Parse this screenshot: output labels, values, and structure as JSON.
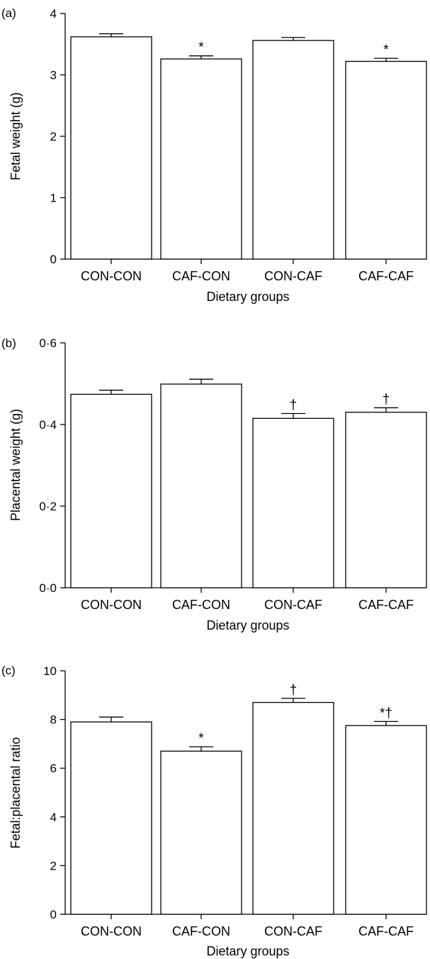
{
  "chart_data": [
    {
      "type": "bar",
      "panel": "(a)",
      "categories": [
        "CON-CON",
        "CAF-CON",
        "CON-CAF",
        "CAF-CAF"
      ],
      "values": [
        3.62,
        3.26,
        3.56,
        3.22
      ],
      "errors": [
        0.05,
        0.05,
        0.05,
        0.05
      ],
      "annotations": [
        "",
        "*",
        "",
        "*"
      ],
      "xlabel": "Dietary groups",
      "ylabel": "Fetal weight (g)",
      "ylim": [
        0,
        4
      ],
      "yticks": [
        0,
        1,
        2,
        3,
        4
      ],
      "ytick_labels": [
        "0",
        "1",
        "2",
        "3",
        "4"
      ],
      "grid": false
    },
    {
      "type": "bar",
      "panel": "(b)",
      "categories": [
        "CON-CON",
        "CAF-CON",
        "CON-CAF",
        "CAF-CAF"
      ],
      "values": [
        0.474,
        0.499,
        0.415,
        0.43
      ],
      "errors": [
        0.01,
        0.012,
        0.012,
        0.011
      ],
      "annotations": [
        "",
        "",
        "†",
        "†"
      ],
      "xlabel": "Dietary groups",
      "ylabel": "Placental weight (g)",
      "ylim": [
        0,
        0.6
      ],
      "yticks": [
        0,
        0.2,
        0.4,
        0.6
      ],
      "ytick_labels": [
        "0·0",
        "0·2",
        "0·4",
        "0·6"
      ],
      "grid": false
    },
    {
      "type": "bar",
      "panel": "(c)",
      "categories": [
        "CON-CON",
        "CAF-CON",
        "CON-CAF",
        "CAF-CAF"
      ],
      "values": [
        7.9,
        6.7,
        8.7,
        7.75
      ],
      "errors": [
        0.2,
        0.18,
        0.17,
        0.17
      ],
      "annotations": [
        "",
        "*",
        "†",
        "*†"
      ],
      "xlabel": "Dietary groups",
      "ylabel": "Fetal:placental ratio",
      "ylim": [
        0,
        10
      ],
      "yticks": [
        0,
        2,
        4,
        6,
        8,
        10
      ],
      "ytick_labels": [
        "0",
        "2",
        "4",
        "6",
        "8",
        "10"
      ],
      "grid": false
    }
  ]
}
